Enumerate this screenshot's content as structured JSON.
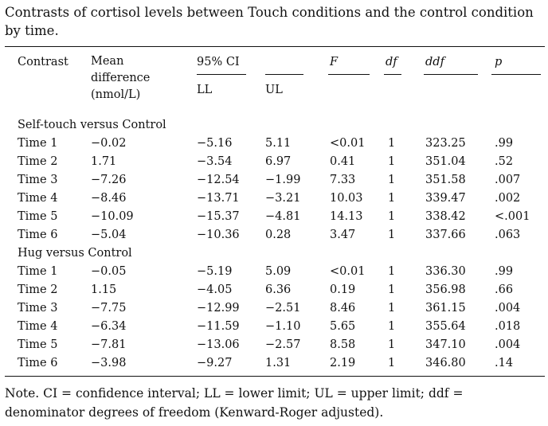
{
  "caption": "Contrasts of cortisol levels between Touch conditions and the control condition by time.",
  "headers": {
    "contrast": "Contrast",
    "mean_line1": "Mean",
    "mean_line2": "difference",
    "mean_line3": "(nmol/L)",
    "ci": "95% CI",
    "ll": "LL",
    "ul": "UL",
    "f": "F",
    "df": "df",
    "ddf": "ddf",
    "p": "p"
  },
  "groups": [
    {
      "title": "Self-touch versus Control",
      "rows": [
        {
          "time": "Time 1",
          "mean": "−0.02",
          "ll": "−5.16",
          "ul": "5.11",
          "f": "<0.01",
          "df": "1",
          "ddf": "323.25",
          "p": ".99"
        },
        {
          "time": "Time 2",
          "mean": "1.71",
          "ll": "−3.54",
          "ul": "6.97",
          "f": "0.41",
          "df": "1",
          "ddf": "351.04",
          "p": ".52"
        },
        {
          "time": "Time 3",
          "mean": "−7.26",
          "ll": "−12.54",
          "ul": "−1.99",
          "f": "7.33",
          "df": "1",
          "ddf": "351.58",
          "p": ".007"
        },
        {
          "time": "Time 4",
          "mean": "−8.46",
          "ll": "−13.71",
          "ul": "−3.21",
          "f": "10.03",
          "df": "1",
          "ddf": "339.47",
          "p": ".002"
        },
        {
          "time": "Time 5",
          "mean": "−10.09",
          "ll": "−15.37",
          "ul": "−4.81",
          "f": "14.13",
          "df": "1",
          "ddf": "338.42",
          "p": "<.001"
        },
        {
          "time": "Time 6",
          "mean": "−5.04",
          "ll": "−10.36",
          "ul": "0.28",
          "f": "3.47",
          "df": "1",
          "ddf": "337.66",
          "p": ".063"
        }
      ]
    },
    {
      "title": "Hug versus Control",
      "rows": [
        {
          "time": "Time 1",
          "mean": "−0.05",
          "ll": "−5.19",
          "ul": "5.09",
          "f": "<0.01",
          "df": "1",
          "ddf": "336.30",
          "p": ".99"
        },
        {
          "time": "Time 2",
          "mean": "1.15",
          "ll": "−4.05",
          "ul": "6.36",
          "f": "0.19",
          "df": "1",
          "ddf": "356.98",
          "p": ".66"
        },
        {
          "time": "Time 3",
          "mean": "−7.75",
          "ll": "−12.99",
          "ul": "−2.51",
          "f": "8.46",
          "df": "1",
          "ddf": "361.15",
          "p": ".004"
        },
        {
          "time": "Time 4",
          "mean": "−6.34",
          "ll": "−11.59",
          "ul": "−1.10",
          "f": "5.65",
          "df": "1",
          "ddf": "355.64",
          "p": ".018"
        },
        {
          "time": "Time 5",
          "mean": "−7.81",
          "ll": "−13.06",
          "ul": "−2.57",
          "f": "8.58",
          "df": "1",
          "ddf": "347.10",
          "p": ".004"
        },
        {
          "time": "Time 6",
          "mean": "−3.98",
          "ll": "−9.27",
          "ul": "1.31",
          "f": "2.19",
          "df": "1",
          "ddf": "346.80",
          "p": ".14"
        }
      ]
    }
  ],
  "note": "Note. CI = confidence interval; LL = lower limit; UL = upper limit; ddf = denominator degrees of freedom (Kenward-Roger adjusted)."
}
